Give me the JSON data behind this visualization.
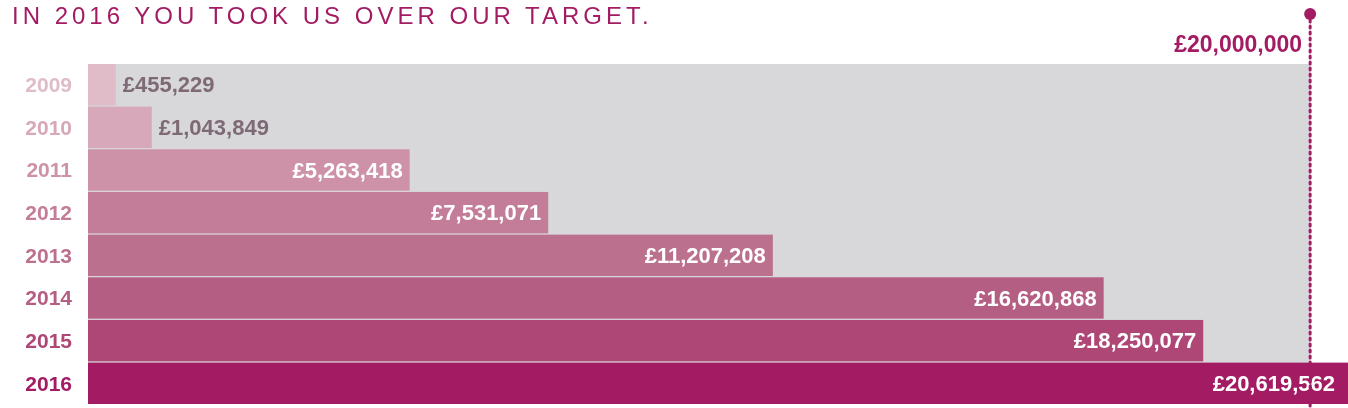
{
  "chart_data": {
    "type": "bar",
    "orientation": "horizontal",
    "title": "IN 2016 YOU TOOK US OVER OUR TARGET.",
    "categories": [
      "2009",
      "2010",
      "2011",
      "2012",
      "2013",
      "2014",
      "2015",
      "2016"
    ],
    "values": [
      455229,
      1043849,
      5263418,
      7531071,
      11207208,
      16620868,
      18250077,
      20619562
    ],
    "colors": [
      "#dfbcc8",
      "#d6a8b9",
      "#cd92a7",
      "#c47d99",
      "#bb708d",
      "#b45e84",
      "#ae4776",
      "#a31c63"
    ],
    "value_labels": [
      "£455,229",
      "£1,043,849",
      "£5,263,418",
      "£7,531,071",
      "£11,207,208",
      "£16,620,868",
      "£18,250,077",
      "£20,619,562"
    ],
    "tick_labels": "y",
    "bands": [
      {
        "axis": "x",
        "from": 0,
        "to": 20000000,
        "color": "#d8d7da"
      }
    ],
    "ref_lines": [
      {
        "axis": "x",
        "value": 20000000,
        "label": "£20,000,000",
        "color": "#a31c63",
        "line_style": "dotted"
      }
    ]
  }
}
